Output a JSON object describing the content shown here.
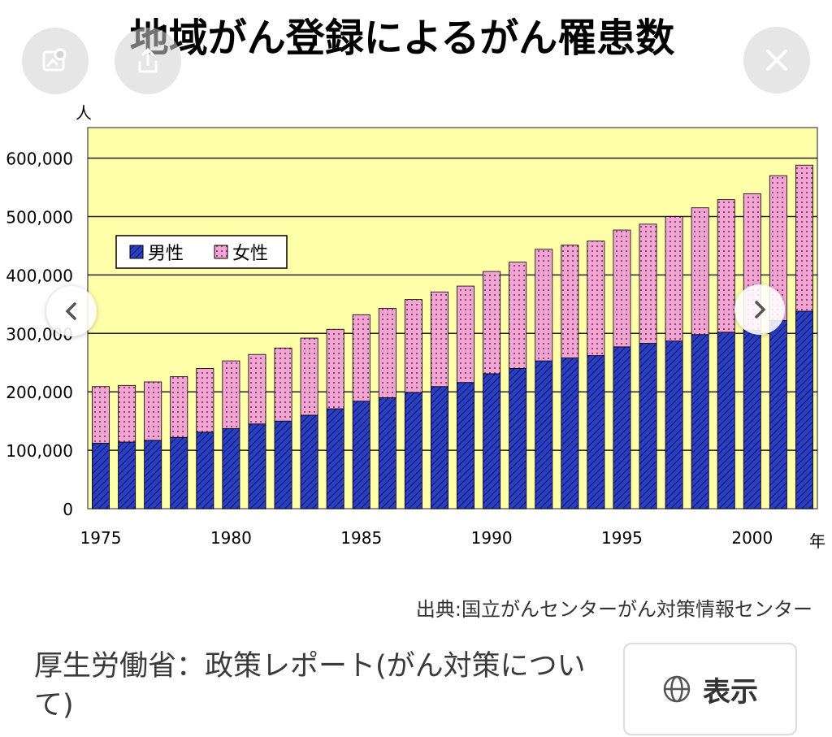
{
  "viewer": {
    "action_buttons": [
      {
        "name": "visual-search-icon"
      },
      {
        "name": "share-icon"
      },
      {
        "name": "close-icon"
      }
    ],
    "nav": {
      "prev": "chevron-left-icon",
      "next": "chevron-right-icon"
    }
  },
  "chart_data": {
    "type": "bar",
    "stacked": true,
    "title": "地域がん登録によるがん罹患数",
    "ylabel": "人",
    "xlabel": "年",
    "ylim": [
      0,
      650000
    ],
    "yticks": [
      0,
      100000,
      200000,
      300000,
      400000,
      500000,
      600000
    ],
    "ytick_labels": [
      "0",
      "100,000",
      "200,000",
      "300,000",
      "400,000",
      "500,000",
      "600,000"
    ],
    "xtick_labels": [
      "1975",
      "1980",
      "1985",
      "1990",
      "1995",
      "2000"
    ],
    "grid": true,
    "legend_position": "top-left",
    "colors": {
      "男性": "#2b3ec0",
      "女性": "#f2a5d3",
      "plot_bg": "#ffffaa"
    },
    "categories": [
      "1975",
      "1976",
      "1977",
      "1978",
      "1979",
      "1980",
      "1981",
      "1982",
      "1983",
      "1984",
      "1985",
      "1986",
      "1987",
      "1988",
      "1989",
      "1990",
      "1991",
      "1992",
      "1993",
      "1994",
      "1995",
      "1996",
      "1997",
      "1998",
      "1999",
      "2000",
      "2001",
      "2002"
    ],
    "series": [
      {
        "name": "男性",
        "values": [
          112000,
          114000,
          117000,
          122000,
          131000,
          137000,
          145000,
          150000,
          160000,
          171000,
          184000,
          190000,
          199000,
          209000,
          216000,
          231000,
          240000,
          253000,
          258000,
          262000,
          277000,
          283000,
          287000,
          298000,
          302000,
          305000,
          322000,
          338000
        ]
      },
      {
        "name": "女性",
        "values": [
          97000,
          97000,
          100000,
          104000,
          109000,
          116000,
          119000,
          125000,
          132000,
          136000,
          148000,
          153000,
          159000,
          162000,
          165000,
          175000,
          182000,
          191000,
          193000,
          196000,
          200000,
          204000,
          213000,
          217000,
          227000,
          234000,
          248000,
          250000
        ]
      }
    ],
    "source": "出典:国立がんセンターがん対策情報センター"
  },
  "caption": "厚生労働省：政策レポート(がん対策について)",
  "show_button": {
    "label": "表示",
    "icon": "globe-icon"
  }
}
